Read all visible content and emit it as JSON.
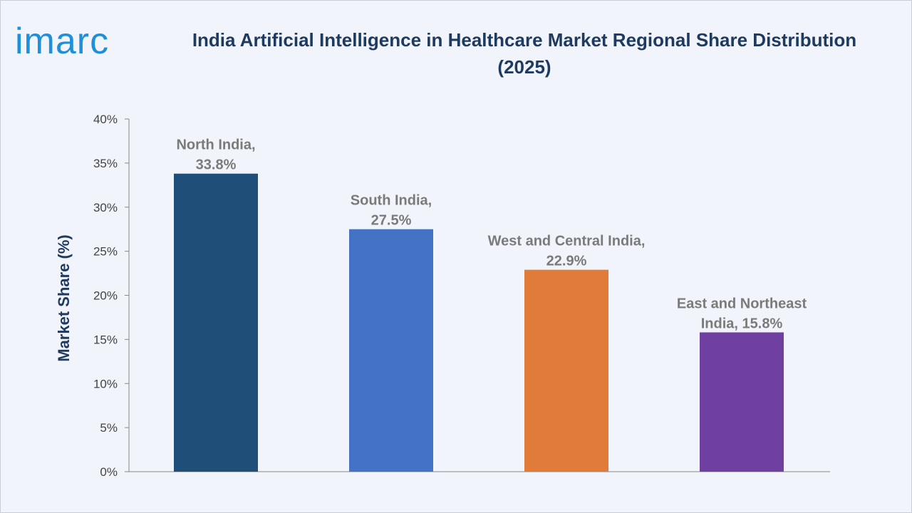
{
  "brand": {
    "logo_text": "imarc",
    "logo_color": "#1f8fd8"
  },
  "chart_data": {
    "type": "bar",
    "title": "India Artificial Intelligence in Healthcare Market Regional Share Distribution (2025)",
    "ylabel": "Market Share (%)",
    "xlabel": "",
    "ylim": [
      0,
      40
    ],
    "yticks": [
      "0%",
      "5%",
      "10%",
      "15%",
      "20%",
      "25%",
      "30%",
      "35%",
      "40%"
    ],
    "categories": [
      "North India",
      "South India",
      "West and Central India",
      "East and Northeast India"
    ],
    "values": [
      33.8,
      27.5,
      22.9,
      15.8
    ],
    "data_labels": [
      [
        "North India,",
        "33.8%"
      ],
      [
        "South India,",
        "27.5%"
      ],
      [
        "West and Central India,",
        "22.9%"
      ],
      [
        "East and Northeast",
        "India, 15.8%"
      ]
    ],
    "colors": [
      "#1f4e79",
      "#4472c4",
      "#e07b39",
      "#7040a0"
    ],
    "grid": false,
    "legend": "none"
  }
}
